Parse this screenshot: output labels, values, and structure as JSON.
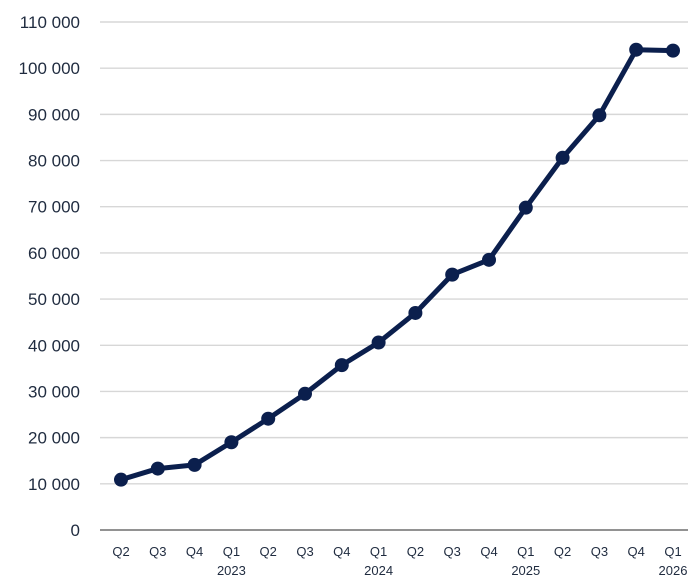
{
  "chart_data": {
    "type": "line",
    "title": "",
    "xlabel": "",
    "ylabel": "",
    "categories": [
      "Q2",
      "Q3",
      "Q4",
      "Q1",
      "Q2",
      "Q3",
      "Q4",
      "Q1",
      "Q2",
      "Q3",
      "Q4",
      "Q1",
      "Q2",
      "Q3",
      "Q4",
      "Q1"
    ],
    "year_labels": [
      {
        "label": "2023",
        "category_index": 3
      },
      {
        "label": "2024",
        "category_index": 7
      },
      {
        "label": "2025",
        "category_index": 11
      },
      {
        "label": "2026",
        "category_index": 15
      }
    ],
    "series": [
      {
        "values": [
          10900,
          13300,
          14100,
          19000,
          24100,
          29500,
          35700,
          40600,
          47000,
          55300,
          58500,
          69800,
          80600,
          89800,
          104000,
          103800
        ],
        "color": "#0b1f4d"
      }
    ],
    "ylim": [
      0,
      110000
    ],
    "y_ticks": [
      0,
      10000,
      20000,
      30000,
      40000,
      50000,
      60000,
      70000,
      80000,
      90000,
      100000,
      110000
    ],
    "y_tick_labels": [
      "0",
      "10 000",
      "20 000",
      "30 000",
      "40 000",
      "50 000",
      "60 000",
      "70 000",
      "80 000",
      "90 000",
      "100 000",
      "110 000"
    ],
    "grid": true,
    "legend": false
  }
}
